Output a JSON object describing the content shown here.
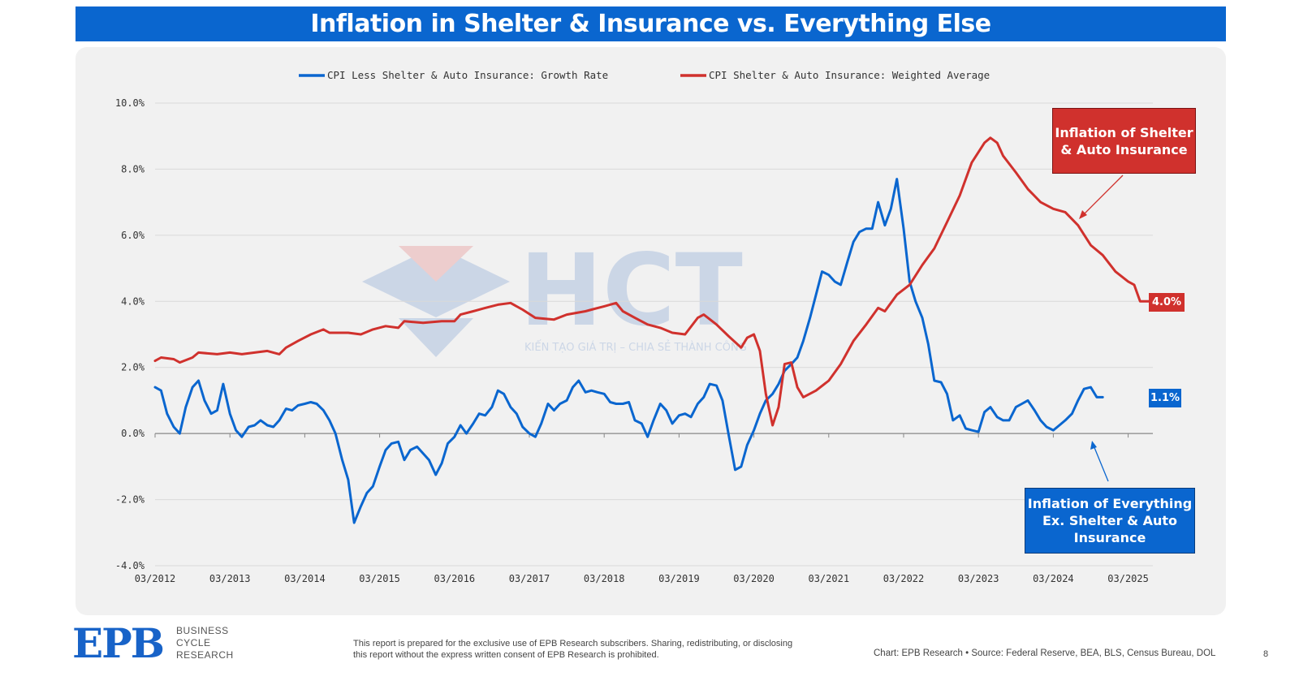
{
  "title": "Inflation in Shelter & Insurance vs. Everything Else",
  "colors": {
    "blue": "#0a66cf",
    "red": "#d0312d",
    "panel": "#f1f1f1",
    "grid": "#d9d9d9"
  },
  "watermark": {
    "logo_text": "HCT",
    "tagline": "KIẾN TẠO GIÁ TRỊ – CHIA SẺ THÀNH CÔNG"
  },
  "callouts": {
    "red_label": "Inflation of Shelter & Auto Insurance",
    "blue_label": "Inflation of Everything Ex. Shelter & Auto Insurance",
    "red_value": "4.0%",
    "blue_value": "1.1%"
  },
  "footer": {
    "logo": "EPB",
    "logo_sub": [
      "BUSINESS",
      "CYCLE",
      "RESEARCH"
    ],
    "disclaimer": "This report is prepared for the exclusive use of EPB Research subscribers. Sharing, redistributing, or disclosing this report without the express written consent of EPB Research is prohibited.",
    "source": "Chart: EPB Research  •  Source: Federal Reserve, BEA, BLS, Census Bureau, DOL",
    "page": "8"
  },
  "chart_data": {
    "type": "line",
    "title": "Inflation in Shelter & Insurance vs. Everything Else",
    "xlabel": "",
    "ylabel": "",
    "ylim": [
      -4,
      10
    ],
    "xlim": [
      2012.17,
      2025.5
    ],
    "y_ticks": [
      -4,
      -2,
      0,
      2,
      4,
      6,
      8,
      10
    ],
    "y_tick_labels": [
      "-4.0%",
      "-2.0%",
      "0.0%",
      "2.0%",
      "4.0%",
      "6.0%",
      "8.0%",
      "10.0%"
    ],
    "x_ticks": [
      2012.17,
      2013.17,
      2014.17,
      2015.17,
      2016.17,
      2017.17,
      2018.17,
      2019.17,
      2020.17,
      2021.17,
      2022.17,
      2023.17,
      2024.17,
      2025.17
    ],
    "x_tick_labels": [
      "03/2012",
      "03/2013",
      "03/2014",
      "03/2015",
      "03/2016",
      "03/2017",
      "03/2018",
      "03/2019",
      "03/2020",
      "03/2021",
      "03/2022",
      "03/2023",
      "03/2024",
      "03/2025"
    ],
    "grid": true,
    "legend_position": "top-center",
    "series": [
      {
        "name": "CPI Less Shelter & Auto Insurance: Growth Rate",
        "color": "#0a66cf",
        "points": [
          [
            2012.17,
            1.4
          ],
          [
            2012.25,
            1.3
          ],
          [
            2012.33,
            0.6
          ],
          [
            2012.42,
            0.2
          ],
          [
            2012.5,
            0.0
          ],
          [
            2012.58,
            0.8
          ],
          [
            2012.67,
            1.4
          ],
          [
            2012.75,
            1.6
          ],
          [
            2012.83,
            1.0
          ],
          [
            2012.92,
            0.6
          ],
          [
            2013.0,
            0.7
          ],
          [
            2013.08,
            1.5
          ],
          [
            2013.17,
            0.6
          ],
          [
            2013.25,
            0.1
          ],
          [
            2013.33,
            -0.1
          ],
          [
            2013.42,
            0.2
          ],
          [
            2013.5,
            0.25
          ],
          [
            2013.58,
            0.4
          ],
          [
            2013.67,
            0.25
          ],
          [
            2013.75,
            0.2
          ],
          [
            2013.83,
            0.4
          ],
          [
            2013.92,
            0.75
          ],
          [
            2014.0,
            0.7
          ],
          [
            2014.08,
            0.85
          ],
          [
            2014.17,
            0.9
          ],
          [
            2014.25,
            0.95
          ],
          [
            2014.33,
            0.9
          ],
          [
            2014.42,
            0.7
          ],
          [
            2014.5,
            0.4
          ],
          [
            2014.58,
            0.0
          ],
          [
            2014.67,
            -0.8
          ],
          [
            2014.75,
            -1.4
          ],
          [
            2014.83,
            -2.7
          ],
          [
            2014.92,
            -2.2
          ],
          [
            2015.0,
            -1.8
          ],
          [
            2015.08,
            -1.6
          ],
          [
            2015.17,
            -1.0
          ],
          [
            2015.25,
            -0.5
          ],
          [
            2015.33,
            -0.3
          ],
          [
            2015.42,
            -0.25
          ],
          [
            2015.5,
            -0.8
          ],
          [
            2015.58,
            -0.5
          ],
          [
            2015.67,
            -0.4
          ],
          [
            2015.75,
            -0.6
          ],
          [
            2015.83,
            -0.8
          ],
          [
            2015.92,
            -1.25
          ],
          [
            2016.0,
            -0.9
          ],
          [
            2016.08,
            -0.3
          ],
          [
            2016.17,
            -0.1
          ],
          [
            2016.25,
            0.25
          ],
          [
            2016.33,
            0.0
          ],
          [
            2016.42,
            0.3
          ],
          [
            2016.5,
            0.6
          ],
          [
            2016.58,
            0.55
          ],
          [
            2016.67,
            0.8
          ],
          [
            2016.75,
            1.3
          ],
          [
            2016.83,
            1.2
          ],
          [
            2016.92,
            0.8
          ],
          [
            2017.0,
            0.6
          ],
          [
            2017.08,
            0.2
          ],
          [
            2017.17,
            0.0
          ],
          [
            2017.25,
            -0.1
          ],
          [
            2017.33,
            0.3
          ],
          [
            2017.42,
            0.9
          ],
          [
            2017.5,
            0.7
          ],
          [
            2017.58,
            0.9
          ],
          [
            2017.67,
            1.0
          ],
          [
            2017.75,
            1.4
          ],
          [
            2017.83,
            1.6
          ],
          [
            2017.92,
            1.25
          ],
          [
            2018.0,
            1.3
          ],
          [
            2018.08,
            1.25
          ],
          [
            2018.17,
            1.2
          ],
          [
            2018.25,
            0.95
          ],
          [
            2018.33,
            0.9
          ],
          [
            2018.42,
            0.9
          ],
          [
            2018.5,
            0.95
          ],
          [
            2018.58,
            0.4
          ],
          [
            2018.67,
            0.3
          ],
          [
            2018.75,
            -0.1
          ],
          [
            2018.83,
            0.4
          ],
          [
            2018.92,
            0.9
          ],
          [
            2019.0,
            0.7
          ],
          [
            2019.08,
            0.3
          ],
          [
            2019.17,
            0.55
          ],
          [
            2019.25,
            0.6
          ],
          [
            2019.33,
            0.5
          ],
          [
            2019.42,
            0.9
          ],
          [
            2019.5,
            1.1
          ],
          [
            2019.58,
            1.5
          ],
          [
            2019.67,
            1.45
          ],
          [
            2019.75,
            1.0
          ],
          [
            2019.83,
            0.0
          ],
          [
            2019.92,
            -1.1
          ],
          [
            2020.0,
            -1.0
          ],
          [
            2020.08,
            -0.35
          ],
          [
            2020.17,
            0.1
          ],
          [
            2020.25,
            0.6
          ],
          [
            2020.33,
            1.0
          ],
          [
            2020.42,
            1.2
          ],
          [
            2020.5,
            1.5
          ],
          [
            2020.58,
            1.9
          ],
          [
            2020.67,
            2.1
          ],
          [
            2020.75,
            2.3
          ],
          [
            2020.83,
            2.8
          ],
          [
            2020.92,
            3.5
          ],
          [
            2021.0,
            4.2
          ],
          [
            2021.08,
            4.9
          ],
          [
            2021.17,
            4.8
          ],
          [
            2021.25,
            4.6
          ],
          [
            2021.33,
            4.5
          ],
          [
            2021.42,
            5.2
          ],
          [
            2021.5,
            5.8
          ],
          [
            2021.58,
            6.1
          ],
          [
            2021.67,
            6.2
          ],
          [
            2021.75,
            6.2
          ],
          [
            2021.83,
            7.0
          ],
          [
            2021.92,
            6.3
          ],
          [
            2022.0,
            6.8
          ],
          [
            2022.08,
            7.7
          ],
          [
            2022.17,
            6.2
          ],
          [
            2022.25,
            4.6
          ],
          [
            2022.33,
            4.0
          ],
          [
            2022.42,
            3.5
          ],
          [
            2022.5,
            2.7
          ],
          [
            2022.58,
            1.6
          ],
          [
            2022.67,
            1.55
          ],
          [
            2022.75,
            1.2
          ],
          [
            2022.83,
            0.4
          ],
          [
            2022.92,
            0.55
          ],
          [
            2023.0,
            0.15
          ],
          [
            2023.08,
            0.1
          ],
          [
            2023.17,
            0.05
          ],
          [
            2023.25,
            0.65
          ],
          [
            2023.33,
            0.8
          ],
          [
            2023.42,
            0.5
          ],
          [
            2023.5,
            0.4
          ],
          [
            2023.58,
            0.4
          ],
          [
            2023.67,
            0.8
          ],
          [
            2023.75,
            0.9
          ],
          [
            2023.83,
            1.0
          ],
          [
            2023.92,
            0.7
          ],
          [
            2024.0,
            0.4
          ],
          [
            2024.08,
            0.2
          ],
          [
            2024.17,
            0.1
          ],
          [
            2024.25,
            0.25
          ],
          [
            2024.33,
            0.4
          ],
          [
            2024.42,
            0.6
          ],
          [
            2024.5,
            1.0
          ],
          [
            2024.58,
            1.35
          ],
          [
            2024.67,
            1.4
          ],
          [
            2024.75,
            1.1
          ],
          [
            2024.83,
            1.1
          ]
        ]
      },
      {
        "name": "CPI Shelter & Auto Insurance: Weighted Average",
        "color": "#d0312d",
        "points": [
          [
            2012.17,
            2.2
          ],
          [
            2012.25,
            2.3
          ],
          [
            2012.42,
            2.25
          ],
          [
            2012.5,
            2.15
          ],
          [
            2012.67,
            2.3
          ],
          [
            2012.75,
            2.45
          ],
          [
            2013.0,
            2.4
          ],
          [
            2013.17,
            2.45
          ],
          [
            2013.33,
            2.4
          ],
          [
            2013.5,
            2.45
          ],
          [
            2013.67,
            2.5
          ],
          [
            2013.83,
            2.4
          ],
          [
            2013.92,
            2.6
          ],
          [
            2014.08,
            2.8
          ],
          [
            2014.25,
            3.0
          ],
          [
            2014.42,
            3.15
          ],
          [
            2014.5,
            3.05
          ],
          [
            2014.75,
            3.05
          ],
          [
            2014.92,
            3.0
          ],
          [
            2015.08,
            3.15
          ],
          [
            2015.25,
            3.25
          ],
          [
            2015.42,
            3.2
          ],
          [
            2015.5,
            3.4
          ],
          [
            2015.75,
            3.35
          ],
          [
            2016.0,
            3.4
          ],
          [
            2016.17,
            3.4
          ],
          [
            2016.25,
            3.6
          ],
          [
            2016.42,
            3.7
          ],
          [
            2016.58,
            3.8
          ],
          [
            2016.75,
            3.9
          ],
          [
            2016.92,
            3.95
          ],
          [
            2017.08,
            3.75
          ],
          [
            2017.25,
            3.5
          ],
          [
            2017.5,
            3.45
          ],
          [
            2017.67,
            3.6
          ],
          [
            2017.92,
            3.7
          ],
          [
            2018.0,
            3.75
          ],
          [
            2018.17,
            3.85
          ],
          [
            2018.33,
            3.95
          ],
          [
            2018.42,
            3.7
          ],
          [
            2018.58,
            3.5
          ],
          [
            2018.75,
            3.3
          ],
          [
            2018.92,
            3.2
          ],
          [
            2019.08,
            3.05
          ],
          [
            2019.25,
            3.0
          ],
          [
            2019.42,
            3.5
          ],
          [
            2019.5,
            3.6
          ],
          [
            2019.67,
            3.3
          ],
          [
            2019.83,
            2.95
          ],
          [
            2020.0,
            2.6
          ],
          [
            2020.08,
            2.9
          ],
          [
            2020.17,
            3.0
          ],
          [
            2020.25,
            2.5
          ],
          [
            2020.33,
            1.2
          ],
          [
            2020.42,
            0.25
          ],
          [
            2020.5,
            0.8
          ],
          [
            2020.58,
            2.1
          ],
          [
            2020.67,
            2.15
          ],
          [
            2020.75,
            1.4
          ],
          [
            2020.83,
            1.1
          ],
          [
            2021.0,
            1.3
          ],
          [
            2021.17,
            1.6
          ],
          [
            2021.33,
            2.1
          ],
          [
            2021.5,
            2.8
          ],
          [
            2021.67,
            3.3
          ],
          [
            2021.83,
            3.8
          ],
          [
            2021.92,
            3.7
          ],
          [
            2022.08,
            4.2
          ],
          [
            2022.25,
            4.5
          ],
          [
            2022.42,
            5.1
          ],
          [
            2022.58,
            5.6
          ],
          [
            2022.75,
            6.4
          ],
          [
            2022.92,
            7.2
          ],
          [
            2023.08,
            8.2
          ],
          [
            2023.25,
            8.8
          ],
          [
            2023.33,
            8.95
          ],
          [
            2023.42,
            8.8
          ],
          [
            2023.5,
            8.4
          ],
          [
            2023.67,
            7.9
          ],
          [
            2023.83,
            7.4
          ],
          [
            2024.0,
            7.0
          ],
          [
            2024.17,
            6.8
          ],
          [
            2024.33,
            6.7
          ],
          [
            2024.5,
            6.3
          ],
          [
            2024.67,
            5.7
          ],
          [
            2024.83,
            5.4
          ],
          [
            2025.0,
            4.9
          ],
          [
            2025.17,
            4.6
          ],
          [
            2025.25,
            4.5
          ],
          [
            2025.33,
            4.0
          ],
          [
            2025.5,
            4.0
          ]
        ]
      }
    ]
  }
}
